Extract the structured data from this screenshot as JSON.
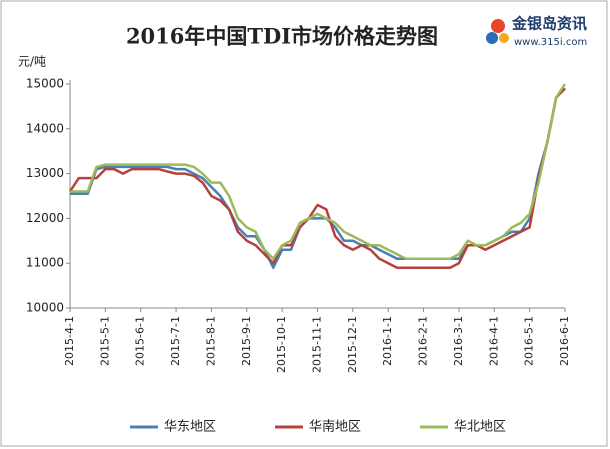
{
  "chart_data": {
    "type": "line",
    "title": "2016年中国TDI市场价格走势图",
    "y_label": "元/吨",
    "logo_text": "金银岛资讯",
    "logo_url": "www.315i.com",
    "categories": [
      "2015-4-1",
      null,
      null,
      null,
      "2015-5-1",
      null,
      null,
      null,
      "2015-6-1",
      null,
      null,
      null,
      "2015-7-1",
      null,
      null,
      null,
      "2015-8-1",
      null,
      null,
      null,
      "2015-9-1",
      null,
      null,
      null,
      "2015-10-1",
      null,
      null,
      null,
      "2015-11-1",
      null,
      null,
      null,
      "2015-12-1",
      null,
      null,
      null,
      "2016-1-1",
      null,
      null,
      null,
      "2016-2-1",
      null,
      null,
      null,
      "2016-3-1",
      null,
      null,
      null,
      "2016-4-1",
      null,
      null,
      null,
      "2016-5-1",
      null,
      null,
      null,
      "2016-6-1"
    ],
    "series": [
      {
        "name": "华东地区",
        "color": "#4a7fb5",
        "values": [
          12550,
          12550,
          12550,
          13100,
          13150,
          13150,
          13150,
          13150,
          13150,
          13150,
          13150,
          13150,
          13100,
          13100,
          13000,
          12900,
          12700,
          12500,
          12200,
          11800,
          11600,
          11600,
          11300,
          10900,
          11300,
          11300,
          11800,
          12000,
          12000,
          12000,
          11800,
          11500,
          11500,
          11400,
          11400,
          11300,
          11200,
          11100,
          11100,
          11100,
          11100,
          11100,
          11100,
          11100,
          11100,
          11400,
          11400,
          11400,
          11500,
          11600,
          11700,
          11700,
          12000,
          13000,
          13700,
          14700,
          14900
        ]
      },
      {
        "name": "华南地区",
        "color": "#b5403c",
        "values": [
          12600,
          12900,
          12900,
          12900,
          13100,
          13100,
          13000,
          13100,
          13100,
          13100,
          13100,
          13050,
          13000,
          13000,
          12950,
          12800,
          12500,
          12400,
          12200,
          11700,
          11500,
          11400,
          11200,
          11000,
          11400,
          11400,
          11800,
          12000,
          12300,
          12200,
          11600,
          11400,
          11300,
          11400,
          11300,
          11100,
          11000,
          10900,
          10900,
          10900,
          10900,
          10900,
          10900,
          10900,
          11000,
          11400,
          11400,
          11300,
          11400,
          11500,
          11600,
          11700,
          11800,
          12900,
          13700,
          14700,
          14900
        ]
      },
      {
        "name": "华北地区",
        "color": "#9bbb59",
        "values": [
          12600,
          12600,
          12600,
          13150,
          13200,
          13200,
          13200,
          13200,
          13200,
          13200,
          13200,
          13200,
          13200,
          13200,
          13150,
          13000,
          12800,
          12800,
          12500,
          12000,
          11800,
          11700,
          11300,
          11100,
          11400,
          11500,
          11900,
          12000,
          12100,
          12000,
          11900,
          11700,
          11600,
          11500,
          11400,
          11400,
          11300,
          11200,
          11100,
          11100,
          11100,
          11100,
          11100,
          11100,
          11200,
          11500,
          11400,
          11400,
          11500,
          11600,
          11800,
          11900,
          12100,
          12800,
          13700,
          14700,
          15000
        ]
      }
    ],
    "ylim": [
      10000,
      15000
    ],
    "yticks": [
      10000,
      11000,
      12000,
      13000,
      14000,
      15000
    ],
    "grid": false,
    "legend": "bottom"
  }
}
